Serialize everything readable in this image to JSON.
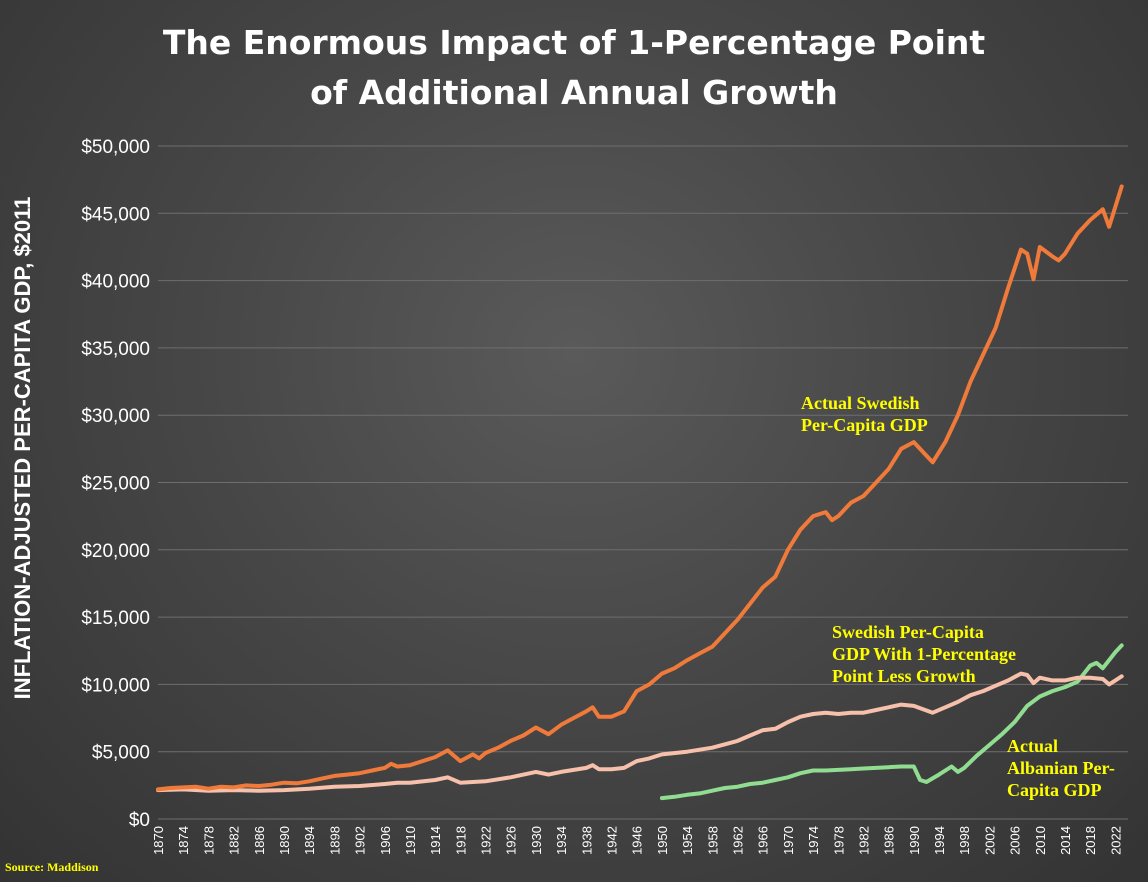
{
  "chart_data": {
    "type": "line",
    "title": [
      "The Enormous Impact of 1-Percentage Point",
      "of Additional Annual Growth"
    ],
    "ylabel": "INFLATION-ADJUSTED PER-CAPITA GDP, $2011",
    "xlabel": "",
    "ylim": [
      0,
      50000
    ],
    "xlim": [
      1870,
      2022
    ],
    "yticks": [
      0,
      5000,
      10000,
      15000,
      20000,
      25000,
      30000,
      35000,
      40000,
      45000,
      50000
    ],
    "ytick_labels": [
      "$0",
      "$5,000",
      "$10,000",
      "$15,000",
      "$20,000",
      "$25,000",
      "$30,000",
      "$35,000",
      "$40,000",
      "$45,000",
      "$50,000"
    ],
    "xticks": [
      1870,
      1874,
      1878,
      1882,
      1886,
      1890,
      1894,
      1898,
      1902,
      1906,
      1910,
      1914,
      1918,
      1922,
      1926,
      1930,
      1934,
      1938,
      1942,
      1946,
      1950,
      1954,
      1958,
      1962,
      1966,
      1970,
      1974,
      1978,
      1982,
      1986,
      1990,
      1994,
      1998,
      2002,
      2006,
      2010,
      2014,
      2018,
      2022
    ],
    "grid": true,
    "legend": "none",
    "series": [
      {
        "color": "#f07a3a",
        "points": [
          [
            1870,
            2200
          ],
          [
            1872,
            2300
          ],
          [
            1874,
            2350
          ],
          [
            1876,
            2400
          ],
          [
            1878,
            2250
          ],
          [
            1880,
            2400
          ],
          [
            1882,
            2350
          ],
          [
            1884,
            2500
          ],
          [
            1886,
            2450
          ],
          [
            1888,
            2550
          ],
          [
            1890,
            2700
          ],
          [
            1892,
            2650
          ],
          [
            1894,
            2800
          ],
          [
            1896,
            3000
          ],
          [
            1898,
            3200
          ],
          [
            1900,
            3300
          ],
          [
            1902,
            3400
          ],
          [
            1904,
            3600
          ],
          [
            1906,
            3800
          ],
          [
            1907,
            4100
          ],
          [
            1908,
            3900
          ],
          [
            1910,
            4000
          ],
          [
            1912,
            4300
          ],
          [
            1914,
            4600
          ],
          [
            1916,
            5100
          ],
          [
            1918,
            4300
          ],
          [
            1920,
            4800
          ],
          [
            1921,
            4500
          ],
          [
            1922,
            4900
          ],
          [
            1924,
            5300
          ],
          [
            1926,
            5800
          ],
          [
            1928,
            6200
          ],
          [
            1930,
            6800
          ],
          [
            1932,
            6300
          ],
          [
            1934,
            7000
          ],
          [
            1936,
            7500
          ],
          [
            1938,
            8000
          ],
          [
            1939,
            8300
          ],
          [
            1940,
            7600
          ],
          [
            1942,
            7600
          ],
          [
            1944,
            8000
          ],
          [
            1946,
            9500
          ],
          [
            1948,
            10000
          ],
          [
            1950,
            10800
          ],
          [
            1952,
            11200
          ],
          [
            1954,
            11800
          ],
          [
            1956,
            12300
          ],
          [
            1958,
            12800
          ],
          [
            1960,
            13800
          ],
          [
            1962,
            14800
          ],
          [
            1964,
            16000
          ],
          [
            1966,
            17200
          ],
          [
            1968,
            18000
          ],
          [
            1970,
            20000
          ],
          [
            1972,
            21500
          ],
          [
            1974,
            22500
          ],
          [
            1976,
            22800
          ],
          [
            1977,
            22200
          ],
          [
            1978,
            22500
          ],
          [
            1980,
            23500
          ],
          [
            1982,
            24000
          ],
          [
            1984,
            25000
          ],
          [
            1986,
            26000
          ],
          [
            1988,
            27500
          ],
          [
            1990,
            28000
          ],
          [
            1992,
            27000
          ],
          [
            1993,
            26500
          ],
          [
            1995,
            28000
          ],
          [
            1997,
            30000
          ],
          [
            1999,
            32500
          ],
          [
            2001,
            34500
          ],
          [
            2003,
            36500
          ],
          [
            2005,
            39500
          ],
          [
            2007,
            42300
          ],
          [
            2008,
            42000
          ],
          [
            2009,
            40100
          ],
          [
            2010,
            42500
          ],
          [
            2012,
            41800
          ],
          [
            2013,
            41500
          ],
          [
            2014,
            42000
          ],
          [
            2016,
            43500
          ],
          [
            2018,
            44500
          ],
          [
            2020,
            45300
          ],
          [
            2021,
            44000
          ],
          [
            2022,
            45500
          ],
          [
            2023,
            47000
          ]
        ]
      },
      {
        "color": "#f6c0aa",
        "points": [
          [
            1870,
            2150
          ],
          [
            1874,
            2200
          ],
          [
            1878,
            2100
          ],
          [
            1882,
            2150
          ],
          [
            1886,
            2100
          ],
          [
            1890,
            2150
          ],
          [
            1894,
            2250
          ],
          [
            1898,
            2400
          ],
          [
            1902,
            2450
          ],
          [
            1906,
            2600
          ],
          [
            1908,
            2700
          ],
          [
            1910,
            2700
          ],
          [
            1914,
            2900
          ],
          [
            1916,
            3100
          ],
          [
            1918,
            2700
          ],
          [
            1922,
            2800
          ],
          [
            1926,
            3100
          ],
          [
            1930,
            3500
          ],
          [
            1932,
            3300
          ],
          [
            1934,
            3500
          ],
          [
            1938,
            3800
          ],
          [
            1939,
            4000
          ],
          [
            1940,
            3700
          ],
          [
            1942,
            3700
          ],
          [
            1944,
            3800
          ],
          [
            1946,
            4300
          ],
          [
            1948,
            4500
          ],
          [
            1950,
            4800
          ],
          [
            1954,
            5000
          ],
          [
            1958,
            5300
          ],
          [
            1962,
            5800
          ],
          [
            1964,
            6200
          ],
          [
            1966,
            6600
          ],
          [
            1968,
            6700
          ],
          [
            1970,
            7200
          ],
          [
            1972,
            7600
          ],
          [
            1974,
            7800
          ],
          [
            1976,
            7900
          ],
          [
            1978,
            7800
          ],
          [
            1980,
            7900
          ],
          [
            1982,
            7900
          ],
          [
            1984,
            8100
          ],
          [
            1986,
            8300
          ],
          [
            1988,
            8500
          ],
          [
            1990,
            8400
          ],
          [
            1993,
            7900
          ],
          [
            1995,
            8300
          ],
          [
            1997,
            8700
          ],
          [
            1999,
            9200
          ],
          [
            2001,
            9500
          ],
          [
            2003,
            9900
          ],
          [
            2005,
            10300
          ],
          [
            2007,
            10800
          ],
          [
            2008,
            10700
          ],
          [
            2009,
            10100
          ],
          [
            2010,
            10500
          ],
          [
            2012,
            10300
          ],
          [
            2014,
            10300
          ],
          [
            2016,
            10500
          ],
          [
            2018,
            10500
          ],
          [
            2020,
            10400
          ],
          [
            2021,
            10000
          ],
          [
            2022,
            10300
          ],
          [
            2023,
            10600
          ]
        ]
      },
      {
        "color": "#90dd92",
        "points": [
          [
            1950,
            1550
          ],
          [
            1952,
            1650
          ],
          [
            1954,
            1800
          ],
          [
            1956,
            1900
          ],
          [
            1958,
            2100
          ],
          [
            1960,
            2300
          ],
          [
            1962,
            2400
          ],
          [
            1964,
            2600
          ],
          [
            1966,
            2700
          ],
          [
            1968,
            2900
          ],
          [
            1970,
            3100
          ],
          [
            1972,
            3400
          ],
          [
            1974,
            3600
          ],
          [
            1976,
            3600
          ],
          [
            1978,
            3650
          ],
          [
            1980,
            3700
          ],
          [
            1982,
            3750
          ],
          [
            1984,
            3800
          ],
          [
            1986,
            3850
          ],
          [
            1988,
            3900
          ],
          [
            1990,
            3900
          ],
          [
            1991,
            2900
          ],
          [
            1992,
            2750
          ],
          [
            1994,
            3300
          ],
          [
            1996,
            3900
          ],
          [
            1997,
            3500
          ],
          [
            1998,
            3800
          ],
          [
            2000,
            4700
          ],
          [
            2002,
            5500
          ],
          [
            2004,
            6300
          ],
          [
            2006,
            7200
          ],
          [
            2008,
            8400
          ],
          [
            2010,
            9100
          ],
          [
            2012,
            9500
          ],
          [
            2014,
            9800
          ],
          [
            2016,
            10200
          ],
          [
            2018,
            11400
          ],
          [
            2019,
            11600
          ],
          [
            2020,
            11200
          ],
          [
            2022,
            12400
          ],
          [
            2023,
            12900
          ]
        ]
      }
    ],
    "annotations": [
      {
        "lines": [
          "Actual Swedish",
          "Per-Capita GDP"
        ],
        "color": "#ffff00"
      },
      {
        "lines": [
          "Swedish Per-Capita",
          "GDP With 1-Percentage",
          "Point Less Growth"
        ],
        "color": "#ffff00"
      },
      {
        "lines": [
          "Actual",
          "Albanian Per-",
          "Capita GDP"
        ],
        "color": "#ffff00"
      }
    ],
    "source": "Source: Maddison"
  }
}
